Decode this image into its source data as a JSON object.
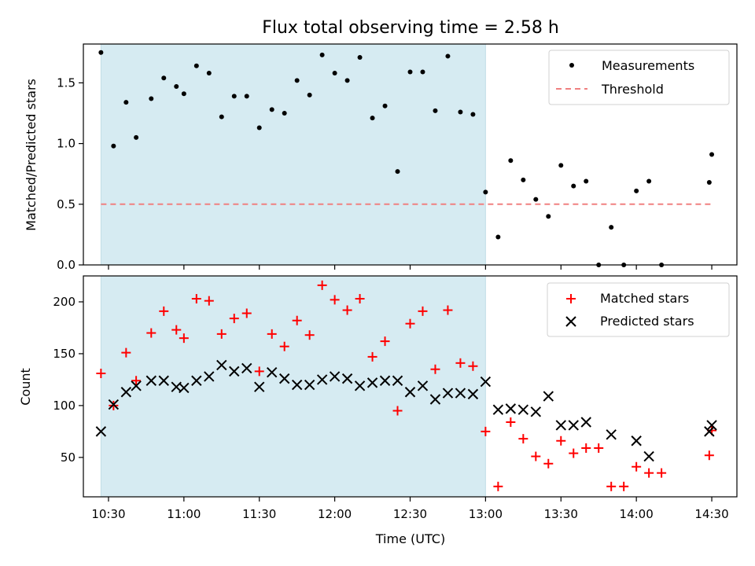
{
  "chart_data": [
    {
      "type": "scatter",
      "title": "Flux total observing time = 2.58 h",
      "xlabel": "",
      "ylabel": "Matched/Predicted stars",
      "ylim": [
        0,
        1.82
      ],
      "xlim": [
        "10:20",
        "14:40"
      ],
      "yticks": [
        "0.0",
        "0.5",
        "1.0",
        "1.5"
      ],
      "shaded_interval": [
        "10:27",
        "13:00"
      ],
      "legend": {
        "placement": "top-right",
        "entries": [
          "Measurements",
          "Threshold"
        ]
      },
      "threshold": {
        "name": "Threshold",
        "value": 0.5,
        "x_range": [
          "10:27",
          "14:30"
        ],
        "color": "#f08080"
      },
      "series": [
        {
          "name": "Measurements",
          "color": "#000000",
          "x": [
            "10:27",
            "10:32",
            "10:37",
            "10:41",
            "10:47",
            "10:52",
            "10:57",
            "11:00",
            "11:05",
            "11:10",
            "11:15",
            "11:20",
            "11:25",
            "11:30",
            "11:35",
            "11:40",
            "11:45",
            "11:50",
            "11:55",
            "12:00",
            "12:05",
            "12:10",
            "12:15",
            "12:20",
            "12:25",
            "12:30",
            "12:35",
            "12:40",
            "12:45",
            "12:50",
            "12:55",
            "13:00",
            "13:05",
            "13:10",
            "13:15",
            "13:20",
            "13:25",
            "13:30",
            "13:35",
            "13:40",
            "13:45",
            "13:50",
            "13:55",
            "14:00",
            "14:05",
            "14:10",
            "14:29",
            "14:30"
          ],
          "values": [
            1.75,
            0.98,
            1.34,
            1.05,
            1.37,
            1.54,
            1.47,
            1.41,
            1.64,
            1.58,
            1.22,
            1.39,
            1.39,
            1.13,
            1.28,
            1.25,
            1.52,
            1.4,
            1.73,
            1.58,
            1.52,
            1.71,
            1.21,
            1.31,
            0.77,
            1.59,
            1.59,
            1.27,
            1.72,
            1.26,
            1.24,
            0.6,
            0.23,
            0.86,
            0.7,
            0.54,
            0.4,
            0.82,
            0.65,
            0.69,
            0.0,
            0.31,
            0.0,
            0.61,
            0.69,
            0.0,
            0.68,
            0.91
          ]
        }
      ]
    },
    {
      "type": "scatter",
      "title": "",
      "xlabel": "Time (UTC)",
      "ylabel": "Count",
      "ylim": [
        12,
        225
      ],
      "xlim": [
        "10:20",
        "14:40"
      ],
      "xticks": [
        "10:30",
        "11:00",
        "11:30",
        "12:00",
        "12:30",
        "13:00",
        "13:30",
        "14:00",
        "14:30"
      ],
      "yticks": [
        "50",
        "100",
        "150",
        "200"
      ],
      "shaded_interval": [
        "10:27",
        "13:00"
      ],
      "legend": {
        "placement": "top-right",
        "entries": [
          "Matched stars",
          "Predicted stars"
        ]
      },
      "series": [
        {
          "name": "Matched stars",
          "color": "#ff0000",
          "marker": "plus",
          "x": [
            "10:27",
            "10:32",
            "10:37",
            "10:41",
            "10:47",
            "10:52",
            "10:57",
            "11:00",
            "11:05",
            "11:10",
            "11:15",
            "11:20",
            "11:25",
            "11:30",
            "11:35",
            "11:40",
            "11:45",
            "11:50",
            "11:55",
            "12:00",
            "12:05",
            "12:10",
            "12:15",
            "12:20",
            "12:25",
            "12:30",
            "12:35",
            "12:40",
            "12:45",
            "12:50",
            "12:55",
            "13:00",
            "13:05",
            "13:10",
            "13:15",
            "13:20",
            "13:25",
            "13:30",
            "13:35",
            "13:40",
            "13:45",
            "13:50",
            "13:55",
            "14:00",
            "14:05",
            "14:10",
            "14:29",
            "14:30"
          ],
          "values": [
            131,
            100,
            151,
            124,
            170,
            191,
            173,
            165,
            203,
            201,
            169,
            184,
            189,
            133,
            169,
            157,
            182,
            168,
            216,
            202,
            192,
            203,
            147,
            162,
            95,
            179,
            191,
            135,
            192,
            141,
            138,
            75,
            22,
            84,
            68,
            51,
            44,
            66,
            54,
            59,
            59,
            22,
            22,
            41,
            35,
            35,
            52,
            76
          ]
        },
        {
          "name": "Predicted stars",
          "color": "#000000",
          "marker": "x",
          "x": [
            "10:27",
            "10:32",
            "10:37",
            "10:41",
            "10:47",
            "10:52",
            "10:57",
            "11:00",
            "11:05",
            "11:10",
            "11:15",
            "11:20",
            "11:25",
            "11:30",
            "11:35",
            "11:40",
            "11:45",
            "11:50",
            "11:55",
            "12:00",
            "12:05",
            "12:10",
            "12:15",
            "12:20",
            "12:25",
            "12:30",
            "12:35",
            "12:40",
            "12:45",
            "12:50",
            "12:55",
            "13:00",
            "13:05",
            "13:10",
            "13:15",
            "13:20",
            "13:25",
            "13:30",
            "13:35",
            "13:40",
            "13:50",
            "14:00",
            "14:05",
            "14:29",
            "14:30"
          ],
          "values": [
            75,
            101,
            113,
            119,
            124,
            124,
            118,
            117,
            124,
            128,
            139,
            133,
            136,
            118,
            132,
            126,
            120,
            120,
            125,
            128,
            126,
            119,
            122,
            124,
            124,
            113,
            119,
            106,
            112,
            112,
            111,
            123,
            96,
            97,
            96,
            94,
            109,
            81,
            81,
            84,
            72,
            66,
            51,
            75,
            81
          ]
        }
      ]
    }
  ]
}
